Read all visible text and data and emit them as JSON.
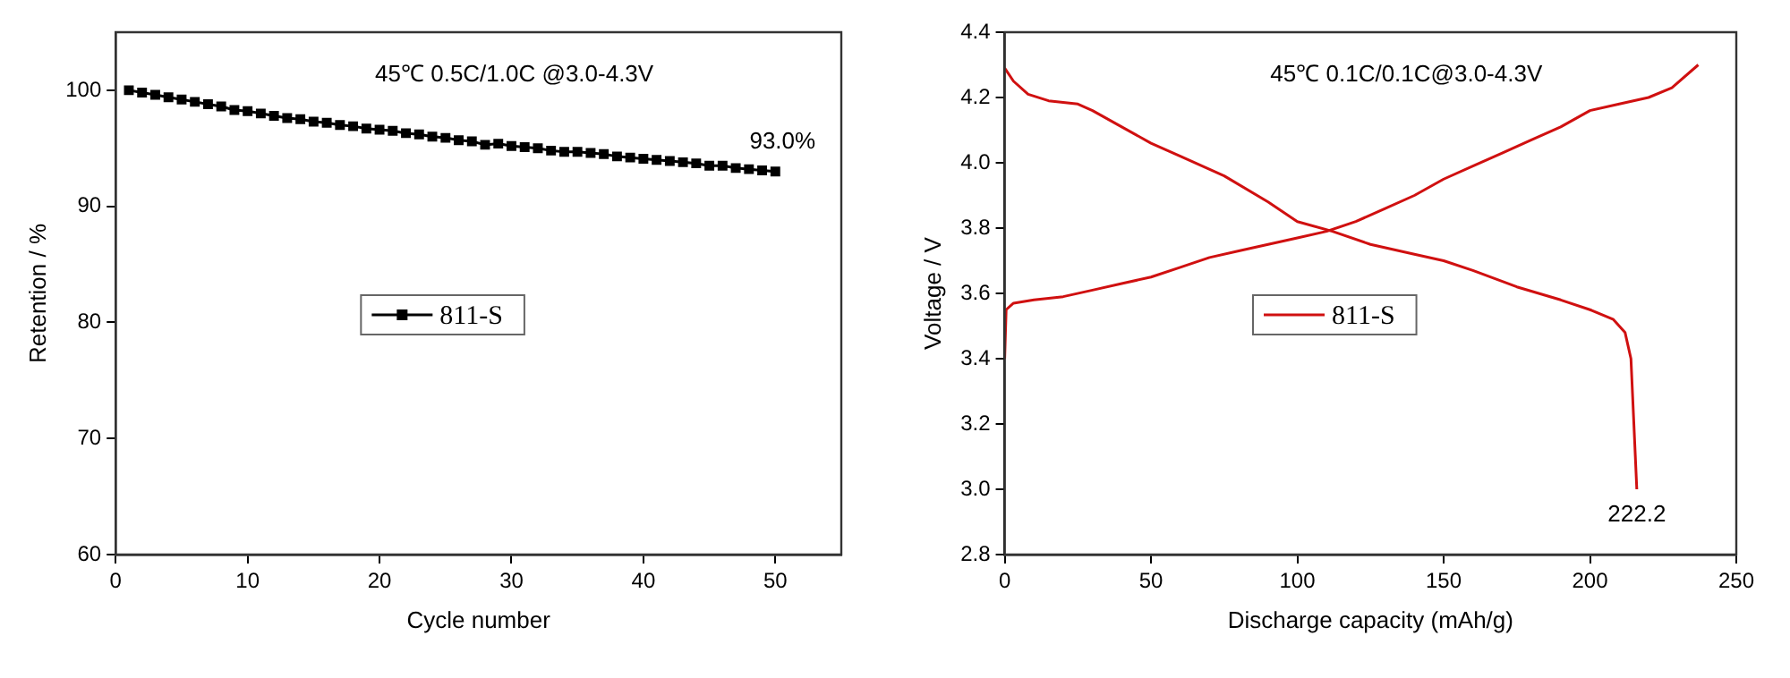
{
  "chart_data": [
    {
      "type": "line",
      "title": "45℃ 0.5C/1.0C @3.0-4.3V",
      "xlabel": "Cycle number",
      "ylabel": "Retention / %",
      "x": [
        1,
        2,
        3,
        4,
        5,
        6,
        7,
        8,
        9,
        10,
        11,
        12,
        13,
        14,
        15,
        16,
        17,
        18,
        19,
        20,
        21,
        22,
        23,
        24,
        25,
        26,
        27,
        28,
        29,
        30,
        31,
        32,
        33,
        34,
        35,
        36,
        37,
        38,
        39,
        40,
        41,
        42,
        43,
        44,
        45,
        46,
        47,
        48,
        49,
        50
      ],
      "series": [
        {
          "name": "811-S",
          "color": "#000000",
          "values": [
            100.0,
            99.8,
            99.6,
            99.4,
            99.2,
            99.0,
            98.8,
            98.6,
            98.3,
            98.2,
            98.0,
            97.8,
            97.6,
            97.5,
            97.3,
            97.2,
            97.0,
            96.9,
            96.7,
            96.6,
            96.5,
            96.3,
            96.2,
            96.0,
            95.9,
            95.7,
            95.6,
            95.3,
            95.4,
            95.2,
            95.1,
            95.0,
            94.8,
            94.7,
            94.7,
            94.6,
            94.5,
            94.3,
            94.2,
            94.1,
            94.0,
            93.9,
            93.8,
            93.7,
            93.5,
            93.5,
            93.3,
            93.2,
            93.1,
            93.0
          ]
        }
      ],
      "xlim": [
        0,
        55
      ],
      "xticks": [
        0,
        10,
        20,
        30,
        40,
        50
      ],
      "ylim": [
        60,
        105
      ],
      "yticks": [
        60,
        70,
        80,
        90,
        100
      ],
      "grid": false,
      "legend": "center",
      "marker": "square",
      "annotations": [
        {
          "text": "93.0%",
          "x": 50,
          "y": 93.0
        }
      ]
    },
    {
      "type": "line",
      "title": "45℃ 0.1C/0.1C@3.0-4.3V",
      "xlabel": "Discharge capacity (mAh/g)",
      "ylabel": "Voltage / V",
      "series": [
        {
          "name": "811-S",
          "color": "#d01010",
          "x": [
            0,
            0.5,
            3,
            10,
            20,
            30,
            40,
            50,
            60,
            70,
            80,
            90,
            100,
            110,
            120,
            130,
            140,
            150,
            160,
            170,
            180,
            190,
            200,
            210,
            220,
            228,
            237
          ],
          "values": [
            3.4,
            3.55,
            3.57,
            3.58,
            3.59,
            3.61,
            3.63,
            3.65,
            3.68,
            3.71,
            3.73,
            3.75,
            3.77,
            3.79,
            3.82,
            3.86,
            3.9,
            3.95,
            3.99,
            4.03,
            4.07,
            4.11,
            4.16,
            4.18,
            4.2,
            4.23,
            4.3
          ]
        },
        {
          "color": "#d01010",
          "x": [
            0,
            3,
            8,
            15,
            25,
            30,
            40,
            50,
            60,
            75,
            90,
            100,
            112,
            125,
            140,
            150,
            160,
            175,
            190,
            200,
            208,
            212,
            214,
            215,
            216
          ],
          "values": [
            4.29,
            4.25,
            4.21,
            4.19,
            4.18,
            4.16,
            4.11,
            4.06,
            4.02,
            3.96,
            3.88,
            3.82,
            3.79,
            3.75,
            3.72,
            3.7,
            3.67,
            3.62,
            3.58,
            3.55,
            3.52,
            3.48,
            3.4,
            3.2,
            3.0
          ]
        }
      ],
      "xlim": [
        0,
        250
      ],
      "xticks": [
        0,
        50,
        100,
        150,
        200,
        250
      ],
      "ylim": [
        2.8,
        4.4
      ],
      "yticks": [
        2.8,
        {
          "value": 3.0,
          "label": "3.0"
        },
        3.2,
        3.4,
        3.6,
        3.8,
        {
          "value": 4.0,
          "label": "4.0"
        },
        4.2,
        4.4
      ],
      "grid": false,
      "legend": "center",
      "marker": "none",
      "annotations": [
        {
          "text": "222.2",
          "x": 216,
          "y": 3.0
        }
      ]
    }
  ]
}
